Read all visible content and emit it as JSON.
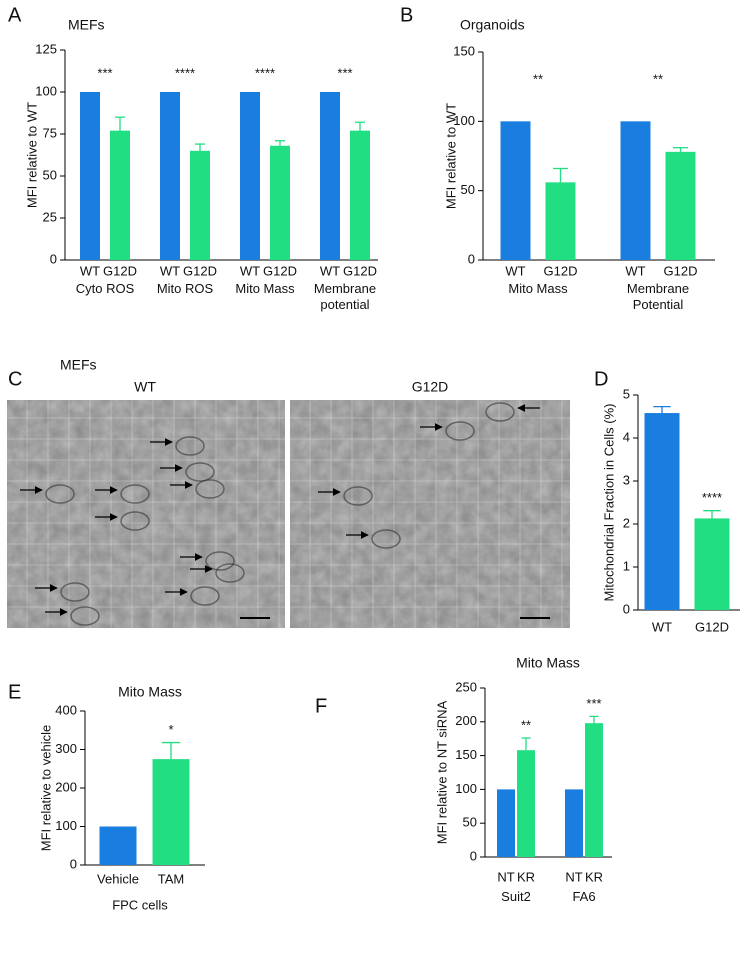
{
  "chart_data": [
    {
      "panel": "A",
      "type": "bar",
      "title": "MEFs",
      "ylabel": "MFI relative to WT",
      "categories": [
        "Cyto ROS",
        "Mito ROS",
        "Mito Mass",
        "Membrane potential"
      ],
      "series": [
        {
          "name": "WT",
          "color": "#1a7de0",
          "values": [
            100,
            100,
            100,
            100
          ]
        },
        {
          "name": "G12D",
          "color": "#21de82",
          "values": [
            77,
            65,
            68,
            77
          ],
          "errors": [
            8,
            4,
            3,
            5
          ]
        }
      ],
      "significance": [
        "***",
        "****",
        "****",
        "***"
      ],
      "ylim": [
        0,
        125
      ],
      "yticks": [
        0,
        25,
        50,
        75,
        100,
        125
      ]
    },
    {
      "panel": "B",
      "type": "bar",
      "title": "Organoids",
      "ylabel": "MFI relative to WT",
      "categories": [
        "Mito Mass",
        "Membrane Potential"
      ],
      "series": [
        {
          "name": "WT",
          "color": "#1a7de0",
          "values": [
            100,
            100
          ]
        },
        {
          "name": "G12D",
          "color": "#21de82",
          "values": [
            56,
            78
          ],
          "errors": [
            10,
            3
          ]
        }
      ],
      "significance": [
        "**",
        "**"
      ],
      "ylim": [
        0,
        150
      ],
      "yticks": [
        0,
        50,
        100,
        150
      ]
    },
    {
      "panel": "D",
      "type": "bar",
      "ylabel": "Mitochondrial Fraction in Cells (%)",
      "categories": [
        "WT",
        "G12D"
      ],
      "values": [
        4.58,
        2.13
      ],
      "errors": [
        0.15,
        0.18
      ],
      "colors": [
        "#1a7de0",
        "#21de82"
      ],
      "significance": [
        null,
        "****"
      ],
      "ylim": [
        0,
        5
      ],
      "yticks": [
        0,
        1,
        2,
        3,
        4,
        5
      ]
    },
    {
      "panel": "E",
      "type": "bar",
      "title": "Mito Mass",
      "ylabel": "MFI relative to vehicle",
      "xlabel": "FPC cells",
      "categories": [
        "Vehicle",
        "TAM"
      ],
      "values": [
        100,
        275
      ],
      "errors": [
        null,
        43
      ],
      "colors": [
        "#1a7de0",
        "#21de82"
      ],
      "significance": [
        null,
        "*"
      ],
      "ylim": [
        0,
        400
      ],
      "yticks": [
        0,
        100,
        200,
        300,
        400
      ]
    },
    {
      "panel": "F",
      "type": "bar",
      "title": "Mito Mass",
      "ylabel": "MFI relative to NT siRNA",
      "categories": [
        "Suit2",
        "FA6"
      ],
      "series": [
        {
          "name": "NT",
          "color": "#1a7de0",
          "values": [
            100,
            100
          ]
        },
        {
          "name": "KR",
          "color": "#21de82",
          "values": [
            158,
            198
          ],
          "errors": [
            18,
            10
          ]
        }
      ],
      "significance": [
        "**",
        "***"
      ],
      "ylim": [
        0,
        250
      ],
      "yticks": [
        0,
        50,
        100,
        150,
        200,
        250
      ]
    }
  ],
  "micrograph": {
    "panel": "C",
    "title": "MEFs",
    "images": [
      "WT",
      "G12D"
    ]
  }
}
